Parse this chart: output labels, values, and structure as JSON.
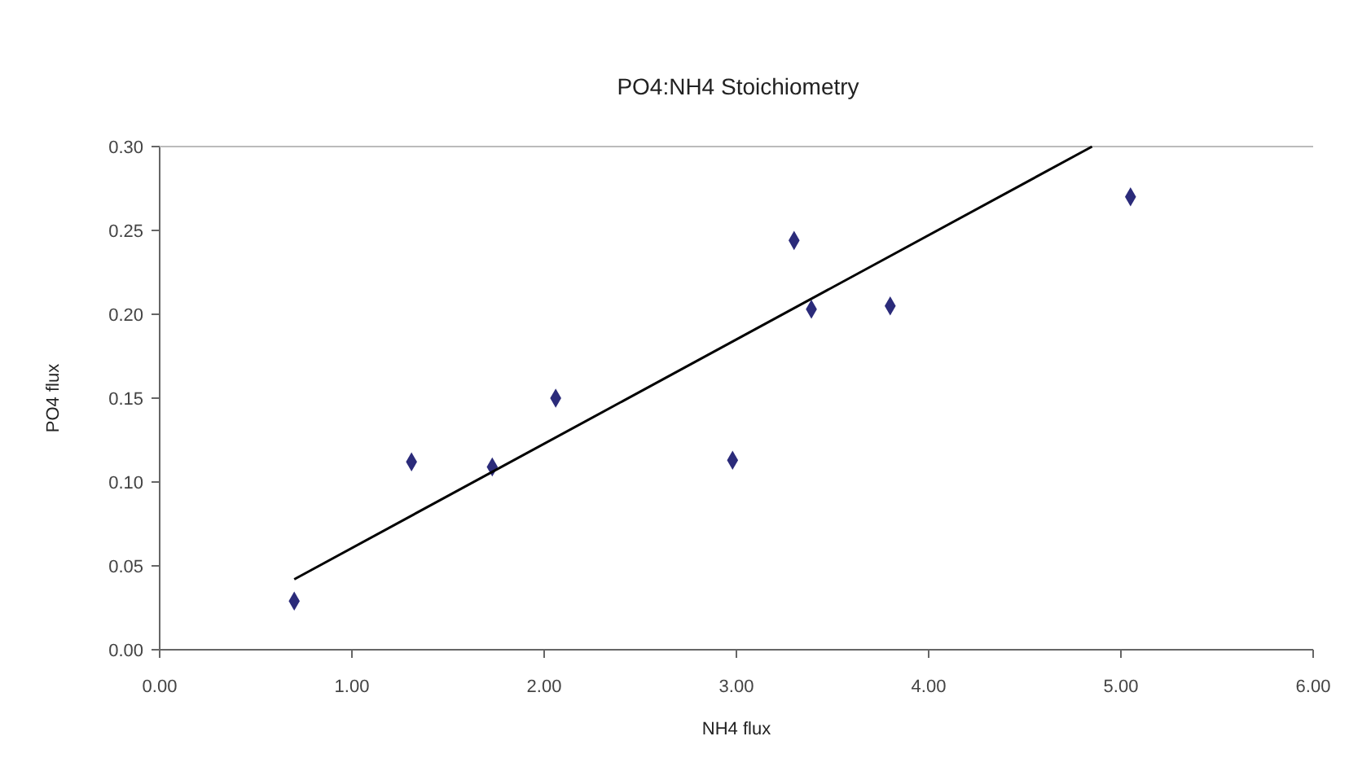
{
  "chart_data": {
    "type": "scatter",
    "title": "PO4:NH4 Stoichiometry",
    "xlabel": "NH4 flux",
    "ylabel": "PO4 flux",
    "xlim": [
      0,
      6
    ],
    "ylim": [
      0,
      0.3
    ],
    "xticks": [
      {
        "value": 0,
        "label": "0.00"
      },
      {
        "value": 1,
        "label": "1.00"
      },
      {
        "value": 2,
        "label": "2.00"
      },
      {
        "value": 3,
        "label": "3.00"
      },
      {
        "value": 4,
        "label": "4.00"
      },
      {
        "value": 5,
        "label": "5.00"
      },
      {
        "value": 6,
        "label": "6.00"
      }
    ],
    "yticks": [
      {
        "value": 0,
        "label": "0.00"
      },
      {
        "value": 0.05,
        "label": "0.05"
      },
      {
        "value": 0.1,
        "label": "0.10"
      },
      {
        "value": 0.15,
        "label": "0.15"
      },
      {
        "value": 0.2,
        "label": "0.20"
      },
      {
        "value": 0.25,
        "label": "0.25"
      },
      {
        "value": 0.3,
        "label": "0.30"
      }
    ],
    "grid": false,
    "marker": "diamond",
    "series": [
      {
        "color": "#2b2b7a",
        "x": [
          0.7,
          1.31,
          1.73,
          2.06,
          2.98,
          3.3,
          3.39,
          3.8,
          5.05
        ],
        "values": [
          0.029,
          0.112,
          0.109,
          0.15,
          0.113,
          0.244,
          0.203,
          0.205,
          0.27
        ]
      },
      {
        "type": "line",
        "color": "#000000",
        "marker": "none",
        "x": [
          0.7,
          4.85
        ],
        "values": [
          0.042,
          0.3
        ]
      }
    ]
  }
}
